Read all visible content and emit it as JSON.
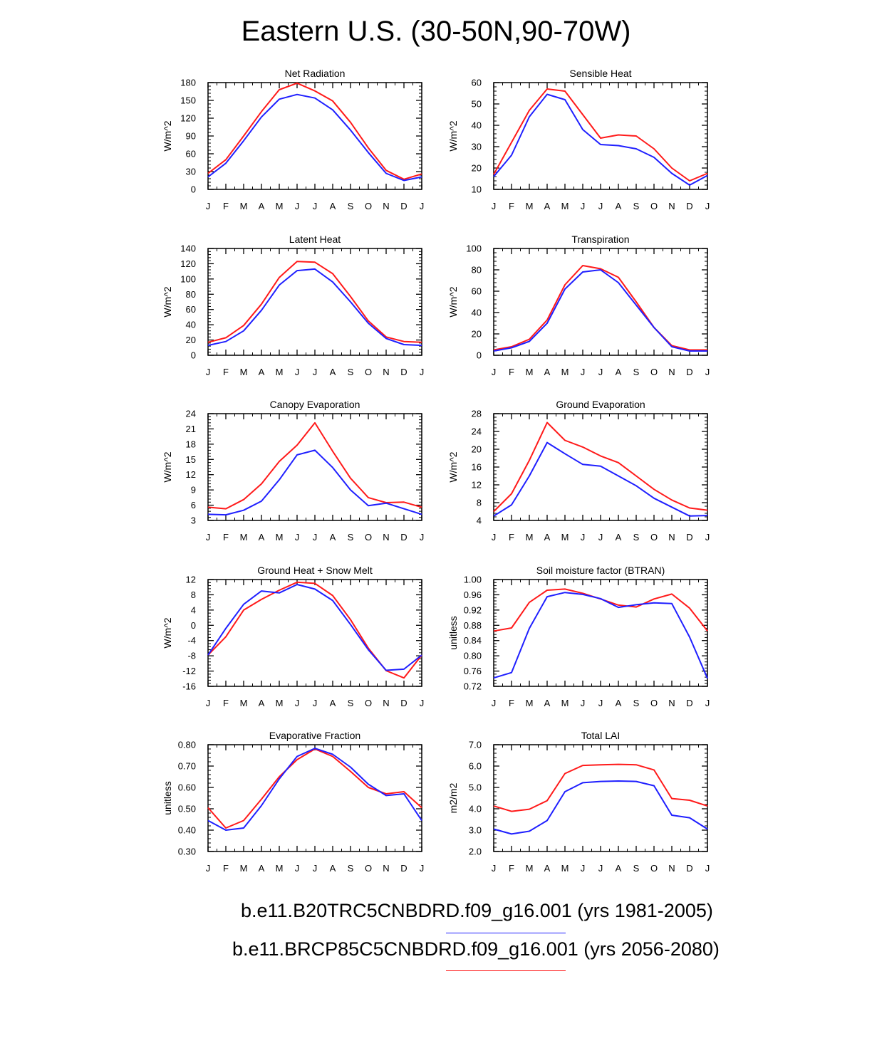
{
  "title": "Eastern U.S. (30-50N,90-70W)",
  "months": [
    "J",
    "F",
    "M",
    "A",
    "M",
    "J",
    "J",
    "A",
    "S",
    "O",
    "N",
    "D",
    "J"
  ],
  "colors": {
    "blue": "#1f1fff",
    "red": "#ff1a1a"
  },
  "legend": [
    {
      "label": "b.e11.B20TRC5CNBDRD.f09_g16.001 (yrs 1981-2005)",
      "color": "#1f1fff"
    },
    {
      "label": "b.e11.BRCP85C5CNBDRD.f09_g16.001 (yrs 2056-2080)",
      "color": "#ff1a1a"
    }
  ],
  "chart_data": [
    {
      "type": "line",
      "title": "Net Radiation",
      "ylabel": "W/m^2",
      "ylim": [
        0,
        180
      ],
      "yticks": [
        0,
        30,
        60,
        90,
        120,
        150,
        180
      ],
      "ytick_labels": [
        "0",
        "30",
        "60",
        "90",
        "120",
        "150",
        "180"
      ],
      "series": [
        {
          "name": "b.e11.B20TRC5CNBDRD.f09_g16.001 (yrs 1981-2005)",
          "color": "#1f1fff",
          "values": [
            21,
            44,
            82,
            122,
            152,
            160,
            154,
            134,
            100,
            62,
            27,
            15,
            21
          ]
        },
        {
          "name": "b.e11.BRCP85C5CNBDRD.f09_g16.001 (yrs 2056-2080)",
          "color": "#ff1a1a",
          "values": [
            27,
            50,
            90,
            131,
            168,
            179,
            166,
            149,
            113,
            70,
            32,
            17,
            26
          ]
        }
      ]
    },
    {
      "type": "line",
      "title": "Sensible Heat",
      "ylabel": "W/m^2",
      "ylim": [
        10,
        60
      ],
      "yticks": [
        10,
        20,
        30,
        40,
        50,
        60
      ],
      "ytick_labels": [
        "10",
        "20",
        "30",
        "40",
        "50",
        "60"
      ],
      "series": [
        {
          "name": "b.e11.B20TRC5CNBDRD.f09_g16.001 (yrs 1981-2005)",
          "color": "#1f1fff",
          "values": [
            16,
            26,
            44,
            54.5,
            52,
            38,
            31,
            30.5,
            29,
            25,
            17.5,
            12,
            16.5
          ]
        },
        {
          "name": "b.e11.BRCP85C5CNBDRD.f09_g16.001 (yrs 2056-2080)",
          "color": "#ff1a1a",
          "values": [
            17,
            32,
            47,
            57,
            56,
            45,
            34,
            35.5,
            35,
            29,
            20,
            14,
            17.5
          ]
        }
      ]
    },
    {
      "type": "line",
      "title": "Latent Heat",
      "ylabel": "W/m^2",
      "ylim": [
        0,
        140
      ],
      "yticks": [
        0,
        20,
        40,
        60,
        80,
        100,
        120,
        140
      ],
      "ytick_labels": [
        "0",
        "20",
        "40",
        "60",
        "80",
        "100",
        "120",
        "140"
      ],
      "series": [
        {
          "name": "b.e11.B20TRC5CNBDRD.f09_g16.001 (yrs 1981-2005)",
          "color": "#1f1fff",
          "values": [
            13,
            18,
            32,
            59,
            92,
            111,
            113,
            96,
            70,
            42,
            22,
            14,
            13
          ]
        },
        {
          "name": "b.e11.BRCP85C5CNBDRD.f09_g16.001 (yrs 2056-2080)",
          "color": "#ff1a1a",
          "values": [
            17,
            23,
            39,
            67,
            102,
            123,
            122,
            107,
            77,
            45,
            24,
            18,
            17
          ]
        }
      ]
    },
    {
      "type": "line",
      "title": "Transpiration",
      "ylabel": "W/m^2",
      "ylim": [
        0,
        100
      ],
      "yticks": [
        0,
        20,
        40,
        60,
        80,
        100
      ],
      "ytick_labels": [
        "0",
        "20",
        "40",
        "60",
        "80",
        "100"
      ],
      "series": [
        {
          "name": "b.e11.B20TRC5CNBDRD.f09_g16.001 (yrs 1981-2005)",
          "color": "#1f1fff",
          "values": [
            4,
            7,
            13,
            30,
            62,
            78,
            80,
            68,
            47,
            26,
            8,
            4,
            4
          ]
        },
        {
          "name": "b.e11.BRCP85C5CNBDRD.f09_g16.001 (yrs 2056-2080)",
          "color": "#ff1a1a",
          "values": [
            5,
            8,
            15,
            33,
            66,
            84,
            81,
            73,
            50,
            26,
            9,
            5,
            5
          ]
        }
      ]
    },
    {
      "type": "line",
      "title": "Canopy Evaporation",
      "ylabel": "W/m^2",
      "ylim": [
        3,
        24
      ],
      "yticks": [
        3,
        6,
        9,
        12,
        15,
        18,
        21,
        24
      ],
      "ytick_labels": [
        "3",
        "6",
        "9",
        "12",
        "15",
        "18",
        "21",
        "24"
      ],
      "series": [
        {
          "name": "b.e11.B20TRC5CNBDRD.f09_g16.001 (yrs 1981-2005)",
          "color": "#1f1fff",
          "values": [
            4.2,
            4.1,
            5.0,
            6.8,
            11.0,
            15.9,
            16.8,
            13.4,
            9.0,
            5.9,
            6.4,
            5.3,
            4.2
          ]
        },
        {
          "name": "b.e11.BRCP85C5CNBDRD.f09_g16.001 (yrs 2056-2080)",
          "color": "#ff1a1a",
          "values": [
            5.6,
            5.3,
            7.1,
            10.2,
            14.6,
            17.8,
            22.2,
            16.6,
            11.3,
            7.5,
            6.5,
            6.6,
            5.6
          ]
        }
      ]
    },
    {
      "type": "line",
      "title": "Ground Evaporation",
      "ylabel": "W/m^2",
      "ylim": [
        4,
        28
      ],
      "yticks": [
        4,
        8,
        12,
        16,
        20,
        24,
        28
      ],
      "ytick_labels": [
        "4",
        "8",
        "12",
        "16",
        "20",
        "24",
        "28"
      ],
      "series": [
        {
          "name": "b.e11.B20TRC5CNBDRD.f09_g16.001 (yrs 1981-2005)",
          "color": "#1f1fff",
          "values": [
            5.0,
            7.5,
            14.0,
            21.5,
            19.0,
            16.6,
            16.2,
            14.0,
            11.8,
            9.0,
            7.0,
            5.0,
            5.1
          ]
        },
        {
          "name": "b.e11.BRCP85C5CNBDRD.f09_g16.001 (yrs 2056-2080)",
          "color": "#ff1a1a",
          "values": [
            6.0,
            10.0,
            17.5,
            26.0,
            22.0,
            20.5,
            18.5,
            17.0,
            14.0,
            11.0,
            8.6,
            6.8,
            6.3
          ]
        }
      ]
    },
    {
      "type": "line",
      "title": "Ground Heat + Snow Melt",
      "ylabel": "W/m^2",
      "ylim": [
        -16,
        12
      ],
      "yticks": [
        -16,
        -12,
        -8,
        -4,
        0,
        4,
        8,
        12
      ],
      "ytick_labels": [
        "-16",
        "-12",
        "-8",
        "-4",
        "0",
        "4",
        "8",
        "12"
      ],
      "series": [
        {
          "name": "b.e11.B20TRC5CNBDRD.f09_g16.001 (yrs 1981-2005)",
          "color": "#1f1fff",
          "values": [
            -7.8,
            -0.8,
            5.5,
            9.0,
            8.5,
            10.7,
            9.5,
            6.5,
            0.2,
            -6.4,
            -11.8,
            -11.5,
            -7.8
          ]
        },
        {
          "name": "b.e11.BRCP85C5CNBDRD.f09_g16.001 (yrs 2056-2080)",
          "color": "#ff1a1a",
          "values": [
            -7.8,
            -3.0,
            4.0,
            6.8,
            9.2,
            11.3,
            11.0,
            7.8,
            1.5,
            -6.0,
            -11.9,
            -13.8,
            -7.8
          ]
        }
      ]
    },
    {
      "type": "line",
      "title": "Soil moisture factor (BTRAN)",
      "ylabel": "unitless",
      "ylim": [
        0.72,
        1.0
      ],
      "yticks": [
        0.72,
        0.76,
        0.8,
        0.84,
        0.88,
        0.92,
        0.96,
        1.0
      ],
      "ytick_labels": [
        "0.72",
        "0.76",
        "0.80",
        "0.84",
        "0.88",
        "0.92",
        "0.96",
        "1.00"
      ],
      "series": [
        {
          "name": "b.e11.B20TRC5CNBDRD.f09_g16.001 (yrs 1981-2005)",
          "color": "#1f1fff",
          "values": [
            0.742,
            0.756,
            0.872,
            0.955,
            0.966,
            0.961,
            0.95,
            0.927,
            0.934,
            0.939,
            0.937,
            0.849,
            0.741
          ]
        },
        {
          "name": "b.e11.BRCP85C5CNBDRD.f09_g16.001 (yrs 2056-2080)",
          "color": "#ff1a1a",
          "values": [
            0.865,
            0.873,
            0.94,
            0.972,
            0.975,
            0.964,
            0.949,
            0.933,
            0.928,
            0.949,
            0.962,
            0.925,
            0.865
          ]
        }
      ]
    },
    {
      "type": "line",
      "title": "Evaporative Fraction",
      "ylabel": "unitless",
      "ylim": [
        0.3,
        0.8
      ],
      "yticks": [
        0.3,
        0.4,
        0.5,
        0.6,
        0.7,
        0.8
      ],
      "ytick_labels": [
        "0.30",
        "0.40",
        "0.50",
        "0.60",
        "0.70",
        "0.80"
      ],
      "series": [
        {
          "name": "b.e11.B20TRC5CNBDRD.f09_g16.001 (yrs 1981-2005)",
          "color": "#1f1fff",
          "values": [
            0.445,
            0.4,
            0.41,
            0.515,
            0.64,
            0.745,
            0.783,
            0.755,
            0.695,
            0.615,
            0.562,
            0.57,
            0.445
          ]
        },
        {
          "name": "b.e11.BRCP85C5CNBDRD.f09_g16.001 (yrs 2056-2080)",
          "color": "#ff1a1a",
          "values": [
            0.505,
            0.41,
            0.445,
            0.545,
            0.65,
            0.73,
            0.78,
            0.745,
            0.675,
            0.6,
            0.57,
            0.58,
            0.505
          ]
        }
      ]
    },
    {
      "type": "line",
      "title": "Total LAI",
      "ylabel": "m2/m2",
      "ylim": [
        2.0,
        7.0
      ],
      "yticks": [
        2.0,
        3.0,
        4.0,
        5.0,
        6.0,
        7.0
      ],
      "ytick_labels": [
        "2.0",
        "3.0",
        "4.0",
        "5.0",
        "6.0",
        "7.0"
      ],
      "series": [
        {
          "name": "b.e11.B20TRC5CNBDRD.f09_g16.001 (yrs 1981-2005)",
          "color": "#1f1fff",
          "values": [
            3.05,
            2.82,
            2.95,
            3.45,
            4.8,
            5.22,
            5.28,
            5.3,
            5.28,
            5.08,
            3.7,
            3.58,
            3.05
          ]
        },
        {
          "name": "b.e11.BRCP85C5CNBDRD.f09_g16.001 (yrs 2056-2080)",
          "color": "#ff1a1a",
          "values": [
            4.13,
            3.88,
            3.98,
            4.38,
            5.65,
            6.03,
            6.06,
            6.08,
            6.06,
            5.82,
            4.48,
            4.4,
            4.13
          ]
        }
      ]
    }
  ]
}
